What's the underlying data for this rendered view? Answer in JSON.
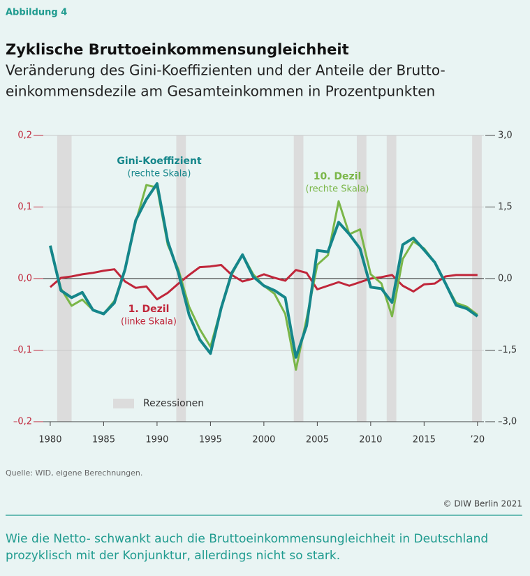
{
  "chart_data": {
    "type": "line",
    "figure_label": "Abbildung 4",
    "title": "Zyklische Bruttoeinkommensungleichheit",
    "subtitle": [
      "Veränderung des Gini-Koeffizienten und der Anteile der Brutto-",
      "einkommensdezile am Gesamteinkommen in Prozentpunkten"
    ],
    "x": [
      1980,
      1981,
      1982,
      1983,
      1984,
      1985,
      1986,
      1987,
      1988,
      1989,
      1990,
      1991,
      1992,
      1993,
      1994,
      1995,
      1996,
      1997,
      1998,
      1999,
      2000,
      2001,
      2002,
      2003,
      2004,
      2005,
      2006,
      2007,
      2008,
      2009,
      2010,
      2011,
      2012,
      2013,
      2014,
      2015,
      2016,
      2017,
      2018,
      2019,
      2020
    ],
    "xlim": [
      1979.35,
      2020.6
    ],
    "xticks": [
      1980,
      1985,
      1990,
      1995,
      2000,
      2005,
      2010,
      2015,
      {
        "value": 2020,
        "label": "’20"
      }
    ],
    "ylim": [
      -0.2,
      0.2
    ],
    "yticks": [
      {
        "value": 0.2,
        "label": "0,2"
      },
      {
        "value": 0.1,
        "label": "0,1"
      },
      {
        "value": 0,
        "label": "0,0"
      },
      {
        "value": -0.1,
        "label": "–0,1"
      },
      {
        "value": -0.2,
        "label": "–0,2"
      }
    ],
    "y2lim": [
      -3,
      3
    ],
    "y2ticks": [
      {
        "value": 3,
        "label": "3,0"
      },
      {
        "value": 1.5,
        "label": "1,5"
      },
      {
        "value": 0,
        "label": "0,0"
      },
      {
        "value": -1.5,
        "label": "–1,5"
      },
      {
        "value": -3,
        "label": "–3,0"
      }
    ],
    "grid": true,
    "recessions": {
      "label": "Rezessionen",
      "color": "#dcdcdc",
      "periods": [
        [
          1980.65,
          1982
        ],
        [
          1991.8,
          1992.7
        ],
        [
          2002.8,
          2003.7
        ],
        [
          2008.7,
          2009.6
        ],
        [
          2011.5,
          2012.4
        ],
        [
          2019.5,
          2020.4
        ]
      ]
    },
    "series": [
      {
        "name": "1. Dezil",
        "note": "(linke Skala)",
        "color": "#c0263a",
        "axis": "y",
        "values": [
          -0.012,
          0.001,
          0.003,
          0.006,
          0.008,
          0.011,
          0.013,
          -0.004,
          -0.013,
          -0.011,
          -0.029,
          -0.02,
          -0.007,
          0.005,
          0.016,
          0.017,
          0.019,
          0.005,
          -0.004,
          0,
          0.006,
          0.001,
          -0.003,
          0.012,
          0.008,
          -0.015,
          -0.01,
          -0.005,
          -0.01,
          -0.005,
          0,
          0.002,
          0.005,
          -0.01,
          -0.018,
          -0.008,
          -0.007,
          0.003,
          0.005,
          0.005,
          0.005
        ]
      },
      {
        "name": "10. Dezil",
        "note": "(rechte Skala)",
        "color": "#7ab648",
        "axis": "y2",
        "values": [
          0.69,
          -0.21,
          -0.57,
          -0.44,
          -0.66,
          -0.74,
          -0.47,
          0.19,
          1.18,
          1.96,
          1.91,
          0.71,
          0.19,
          -0.59,
          -1.06,
          -1.43,
          -0.62,
          0.09,
          0.5,
          0.09,
          -0.15,
          -0.32,
          -0.74,
          -1.91,
          -0.84,
          0.29,
          0.49,
          1.62,
          0.93,
          1.03,
          0.09,
          -0.1,
          -0.79,
          0.41,
          0.78,
          0.63,
          0.34,
          -0.1,
          -0.51,
          -0.59,
          -0.76
        ]
      },
      {
        "name": "Gini-Koeffizient",
        "note": "(rechte Skala)",
        "color": "#15868a",
        "axis": "y2",
        "values": [
          0.69,
          -0.25,
          -0.4,
          -0.29,
          -0.66,
          -0.74,
          -0.51,
          0.19,
          1.22,
          1.66,
          1.99,
          0.78,
          0.12,
          -0.76,
          -1.28,
          -1.57,
          -0.62,
          0.12,
          0.5,
          0.04,
          -0.15,
          -0.25,
          -0.4,
          -1.65,
          -0.99,
          0.59,
          0.56,
          1.18,
          0.93,
          0.63,
          -0.18,
          -0.21,
          -0.5,
          0.71,
          0.85,
          0.6,
          0.34,
          -0.1,
          -0.56,
          -0.63,
          -0.79
        ]
      }
    ],
    "source": "Quelle: WID, eigene Berechnungen.",
    "copyright": "© DIW Berlin 2021",
    "summary": [
      "Wie die Netto- schwankt auch die Bruttoeinkommensungleichheit in Deutschland",
      "prozyklisch mit der Konjunktur, allerdings nicht so stark."
    ]
  }
}
